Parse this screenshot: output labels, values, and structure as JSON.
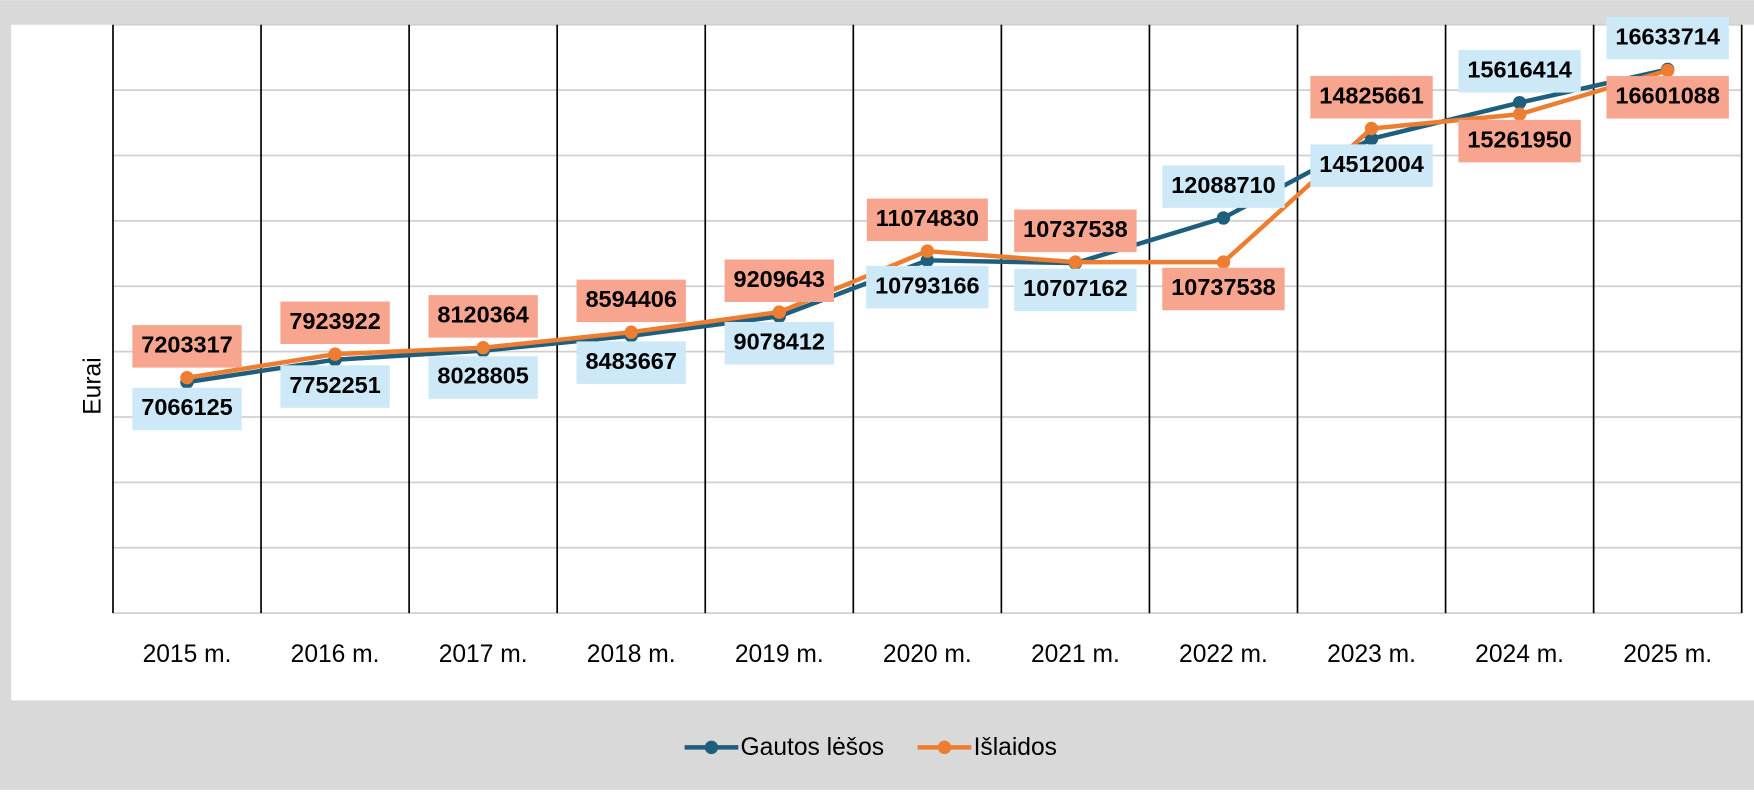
{
  "chart_data": {
    "type": "line",
    "y_label": "Eurai",
    "categories": [
      "2015 m.",
      "2016 m.",
      "2017 m.",
      "2018 m.",
      "2019 m.",
      "2020 m.",
      "2021 m.",
      "2022 m.",
      "2023 m.",
      "2024 m.",
      "2025 m."
    ],
    "series": [
      {
        "name": "Gautos lėšos",
        "color": "#1f5f7e",
        "label_color": "#cde9f8",
        "values": [
          7066125,
          7752251,
          8028805,
          8483667,
          9078412,
          10793166,
          10707162,
          12088710,
          14512004,
          15616414,
          16633714
        ]
      },
      {
        "name": "Išlaidos",
        "color": "#ed7d31",
        "label_color": "#f7a58f",
        "values": [
          7203317,
          7923922,
          8120364,
          8594406,
          9209643,
          11074830,
          10737538,
          10737538,
          14825661,
          15261950,
          16601088
        ]
      }
    ],
    "ylim": [
      0,
      18000000
    ],
    "yticks": [
      0,
      2000000,
      4000000,
      6000000,
      8000000,
      10000000,
      12000000,
      14000000,
      16000000,
      18000000
    ],
    "grid": true,
    "legend": "bottom"
  }
}
